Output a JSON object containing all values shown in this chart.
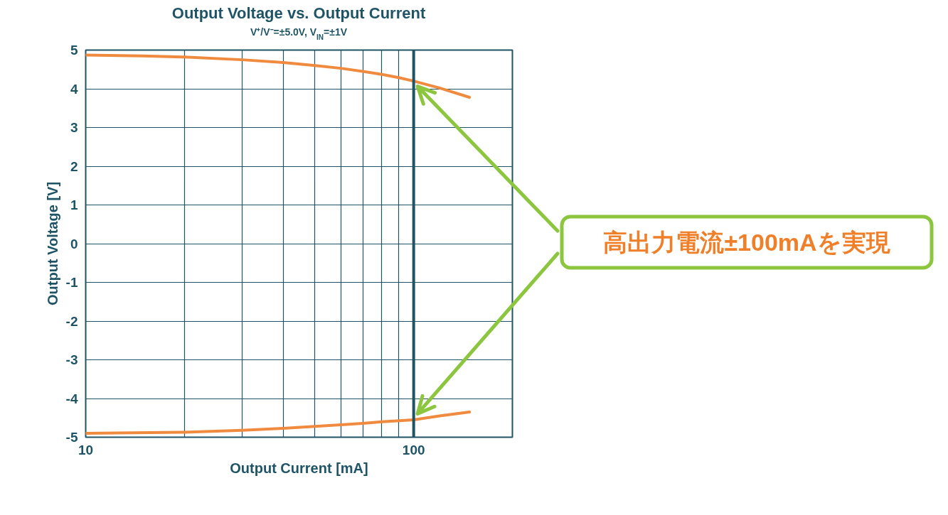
{
  "chart_data": {
    "type": "line",
    "title": "Output Voltage vs. Output Current",
    "subtitle": "V⁺/V⁻=±5.0V, V$_{IN}$=±1V",
    "xlabel": "Output Current [mA]",
    "ylabel": "Output Voltage [V]",
    "log": "x",
    "xlim": [
      10,
      200
    ],
    "ylim": [
      -5,
      5
    ],
    "xticks": [
      10,
      {
        "value": 20,
        "label": null
      },
      {
        "value": 30,
        "label": null
      },
      {
        "value": 40,
        "label": null
      },
      {
        "value": 50,
        "label": null
      },
      {
        "value": 60,
        "label": null
      },
      {
        "value": 70,
        "label": null
      },
      {
        "value": 80,
        "label": null
      },
      {
        "value": 90,
        "label": null
      },
      100
    ],
    "yticks": [
      -5,
      -4,
      -3,
      -2,
      -1,
      0,
      1,
      2,
      3,
      4,
      5
    ],
    "grid": true,
    "marker": "none",
    "line_style": "solid",
    "series": [
      {
        "color": "#f08a3e",
        "x": [
          10,
          15,
          20,
          30,
          40,
          50,
          60,
          70,
          80,
          90,
          100,
          120,
          148
        ],
        "values": [
          4.87,
          4.85,
          4.82,
          4.75,
          4.68,
          4.6,
          4.53,
          4.45,
          4.37,
          4.29,
          4.2,
          4.02,
          3.78
        ]
      },
      {
        "color": "#f08a3e",
        "x": [
          10,
          20,
          30,
          40,
          50,
          60,
          70,
          80,
          100,
          120,
          148
        ],
        "values": [
          -4.9,
          -4.87,
          -4.82,
          -4.77,
          -4.72,
          -4.68,
          -4.64,
          -4.6,
          -4.55,
          -4.45,
          -4.35
        ]
      }
    ],
    "ref_lines": [
      {
        "axis": "x",
        "value": 100,
        "color": "#1f5466"
      }
    ],
    "annotations": [
      "高出力電流±100mAを実現"
    ]
  }
}
